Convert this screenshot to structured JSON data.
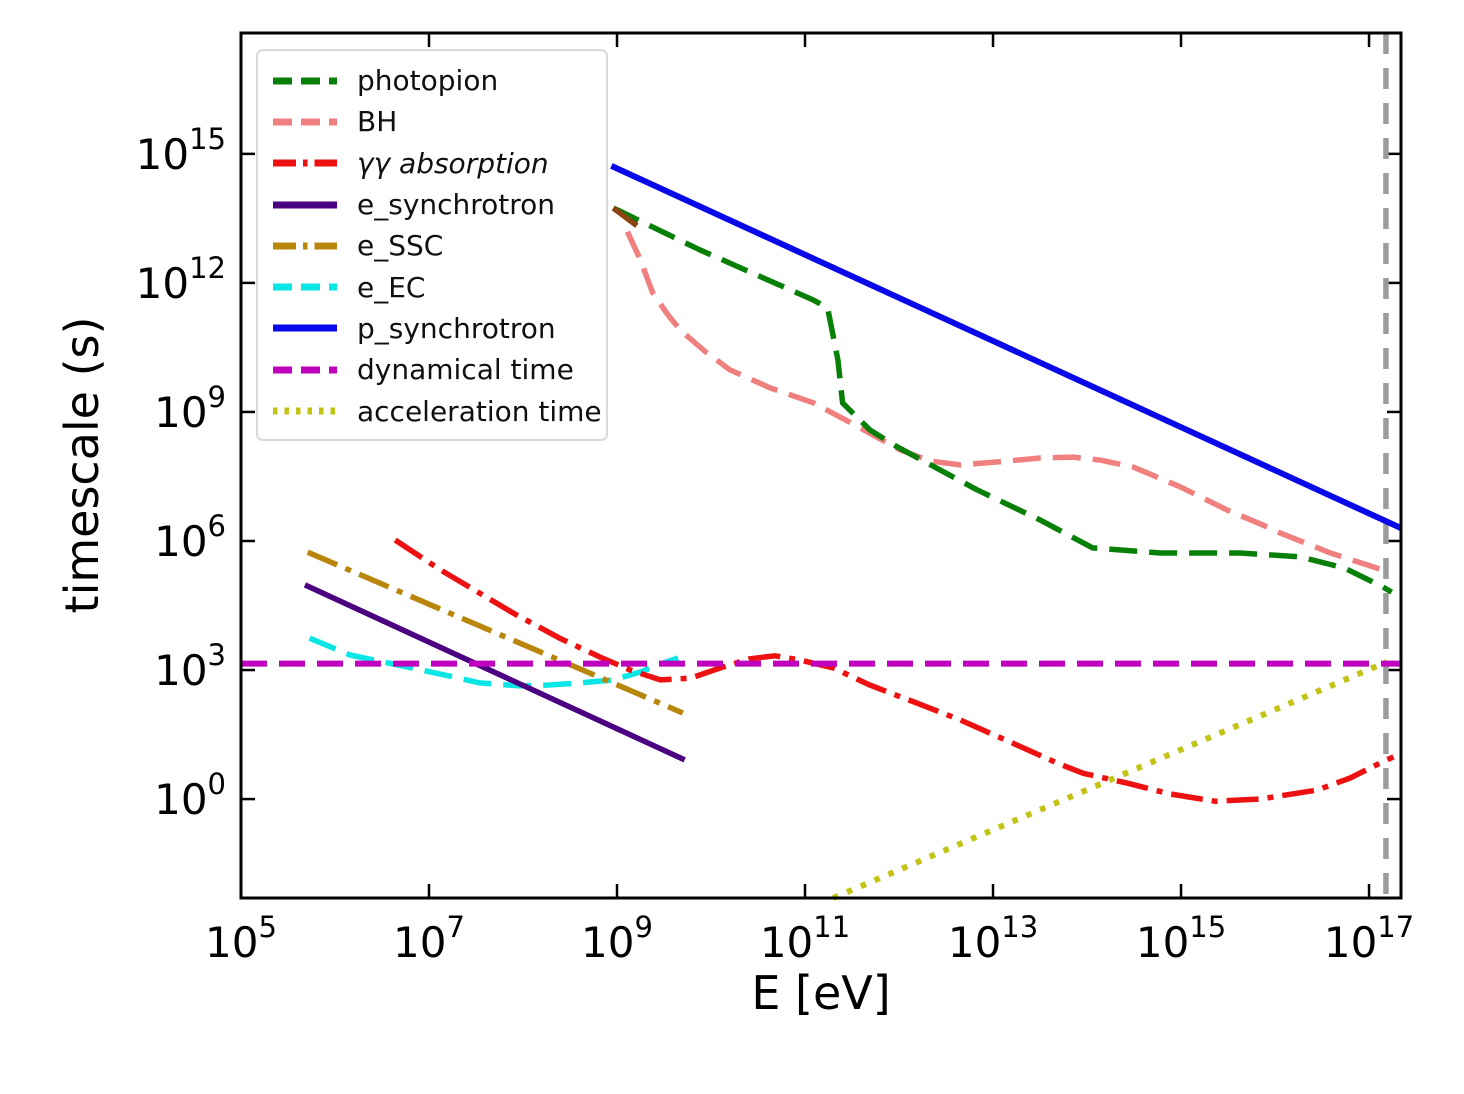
{
  "chart_data": {
    "type": "line",
    "title": "",
    "xlabel": "E [eV]",
    "ylabel": "timescale (s)",
    "x_scale": "log",
    "y_scale": "log",
    "log_base": "10",
    "xlim_log10": [
      5.0,
      17.34
    ],
    "ylim_log10": [
      -2.3,
      17.81
    ],
    "xtick_exponents": [
      5,
      7,
      9,
      11,
      13,
      15,
      17
    ],
    "ytick_exponents": [
      0,
      3,
      6,
      9,
      12,
      15
    ],
    "grid": "off",
    "legend_position": "upper left",
    "series": [
      {
        "id": "photopion",
        "name": "photopion",
        "color": "#088008",
        "style": "dashed",
        "width": 5.5,
        "points_log10": [
          [
            8.96,
            13.74
          ],
          [
            9.0,
            13.7
          ],
          [
            9.88,
            12.77
          ],
          [
            11.09,
            11.6
          ],
          [
            11.24,
            11.42
          ],
          [
            11.35,
            10.21
          ],
          [
            11.4,
            9.21
          ],
          [
            11.69,
            8.58
          ],
          [
            11.98,
            8.19
          ],
          [
            12.83,
            7.19
          ],
          [
            13.5,
            6.49
          ],
          [
            14.06,
            5.84
          ],
          [
            14.78,
            5.72
          ],
          [
            15.63,
            5.72
          ],
          [
            16.27,
            5.63
          ],
          [
            16.74,
            5.37
          ],
          [
            17.15,
            4.93
          ],
          [
            17.24,
            4.81
          ]
        ]
      },
      {
        "id": "bh",
        "name": "BH",
        "color": "#F08080",
        "style": "dashed",
        "width": 5.5,
        "points_log10": [
          [
            9.11,
            13.19
          ],
          [
            9.25,
            12.53
          ],
          [
            9.38,
            11.77
          ],
          [
            9.54,
            11.26
          ],
          [
            9.67,
            10.91
          ],
          [
            9.94,
            10.4
          ],
          [
            10.2,
            9.98
          ],
          [
            10.63,
            9.56
          ],
          [
            11.09,
            9.21
          ],
          [
            11.53,
            8.7
          ],
          [
            12.01,
            8.12
          ],
          [
            12.33,
            7.86
          ],
          [
            12.65,
            7.77
          ],
          [
            13.07,
            7.84
          ],
          [
            13.5,
            7.93
          ],
          [
            13.85,
            7.95
          ],
          [
            14.14,
            7.88
          ],
          [
            14.49,
            7.72
          ],
          [
            14.99,
            7.26
          ],
          [
            15.49,
            6.72
          ],
          [
            15.84,
            6.4
          ],
          [
            16.05,
            6.19
          ],
          [
            16.59,
            5.72
          ],
          [
            17.14,
            5.33
          ]
        ]
      },
      {
        "id": "gg-absorption",
        "name": "γγ absorption",
        "italic": true,
        "color": "#ee1111",
        "style": "dashdot",
        "width": 5.5,
        "points_log10": [
          [
            6.64,
            6.02
          ],
          [
            7.12,
            5.33
          ],
          [
            7.89,
            4.33
          ],
          [
            8.39,
            3.74
          ],
          [
            8.82,
            3.3
          ],
          [
            9.14,
            3.0
          ],
          [
            9.46,
            2.77
          ],
          [
            9.78,
            2.81
          ],
          [
            10.1,
            3.05
          ],
          [
            10.41,
            3.26
          ],
          [
            10.68,
            3.33
          ],
          [
            10.95,
            3.23
          ],
          [
            11.3,
            3.05
          ],
          [
            11.69,
            2.65
          ],
          [
            12.19,
            2.23
          ],
          [
            12.65,
            1.84
          ],
          [
            13.18,
            1.33
          ],
          [
            13.71,
            0.81
          ],
          [
            13.96,
            0.6
          ],
          [
            14.43,
            0.37
          ],
          [
            14.88,
            0.12
          ],
          [
            15.36,
            -0.05
          ],
          [
            15.84,
            0.0
          ],
          [
            16.45,
            0.21
          ],
          [
            16.8,
            0.49
          ],
          [
            17.12,
            0.84
          ],
          [
            17.26,
            0.98
          ]
        ]
      },
      {
        "id": "e-synchrotron",
        "name": "e_synchrotron",
        "color": "#4B0082",
        "style": "solid",
        "width": 5.5,
        "points_log10": [
          [
            5.68,
            4.98
          ],
          [
            9.72,
            0.91
          ]
        ]
      },
      {
        "id": "e-ssc",
        "name": "e_SSC",
        "color": "#B8860B",
        "style": "dashdot",
        "width": 5.5,
        "points_log10": [
          [
            5.71,
            5.74
          ],
          [
            9.7,
            2.0
          ]
        ]
      },
      {
        "id": "e-ec",
        "name": "e_EC",
        "color": "#0ae6e6",
        "style": "dashed",
        "width": 5.5,
        "points_log10": [
          [
            5.73,
            3.74
          ],
          [
            6.16,
            3.35
          ],
          [
            6.77,
            3.07
          ],
          [
            7.22,
            2.86
          ],
          [
            7.54,
            2.7
          ],
          [
            7.97,
            2.63
          ],
          [
            8.26,
            2.65
          ],
          [
            8.61,
            2.7
          ],
          [
            8.96,
            2.77
          ],
          [
            9.24,
            2.95
          ],
          [
            9.49,
            3.16
          ],
          [
            9.65,
            3.28
          ]
        ]
      },
      {
        "id": "p-synchrotron",
        "name": "p_synchrotron",
        "color": "#0808e8",
        "style": "solid",
        "width": 6,
        "points_log10": [
          [
            8.94,
            14.72
          ],
          [
            17.34,
            6.3
          ]
        ]
      },
      {
        "id": "dynamical-time",
        "name": "dynamical time",
        "color": "#bf00bf",
        "style": "dashed",
        "width": 6,
        "points_log10": [
          [
            5.0,
            3.15
          ],
          [
            17.34,
            3.15
          ]
        ]
      },
      {
        "id": "acceleration-time",
        "name": "acceleration time",
        "color": "#c3c316",
        "style": "dotted",
        "width": 6,
        "points_log10": [
          [
            11.3,
            -2.3
          ],
          [
            17.19,
            3.19
          ]
        ]
      }
    ],
    "annotations": [
      {
        "id": "max-energy-vline",
        "type": "vline",
        "x_log10": 17.18,
        "color": "#9c9c9c",
        "style": "dashed",
        "width": 5.5
      },
      {
        "id": "curve-overlap-segment",
        "type": "segment",
        "color": "#8B4513",
        "width": 5.5,
        "points_log10": [
          [
            8.96,
            13.74
          ],
          [
            9.21,
            13.33
          ]
        ]
      }
    ]
  }
}
